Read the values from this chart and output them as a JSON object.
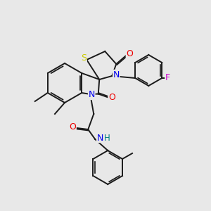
{
  "bg_color": "#e8e8e8",
  "bond_color": "#1a1a1a",
  "S_color": "#cccc00",
  "N_color": "#0000ee",
  "O_color": "#ee0000",
  "F_color": "#cc00cc",
  "H_color": "#008080",
  "C_color": "#1a1a1a",
  "atoms": {
    "S": {
      "symbol": "S",
      "color": "#cccc00"
    },
    "N": {
      "symbol": "N",
      "color": "#0000ee"
    },
    "O": {
      "symbol": "O",
      "color": "#ee0000"
    },
    "F": {
      "symbol": "F",
      "color": "#cc00cc"
    },
    "H": {
      "symbol": "H",
      "color": "#008080"
    }
  },
  "figsize": [
    3.0,
    3.0
  ],
  "dpi": 100
}
